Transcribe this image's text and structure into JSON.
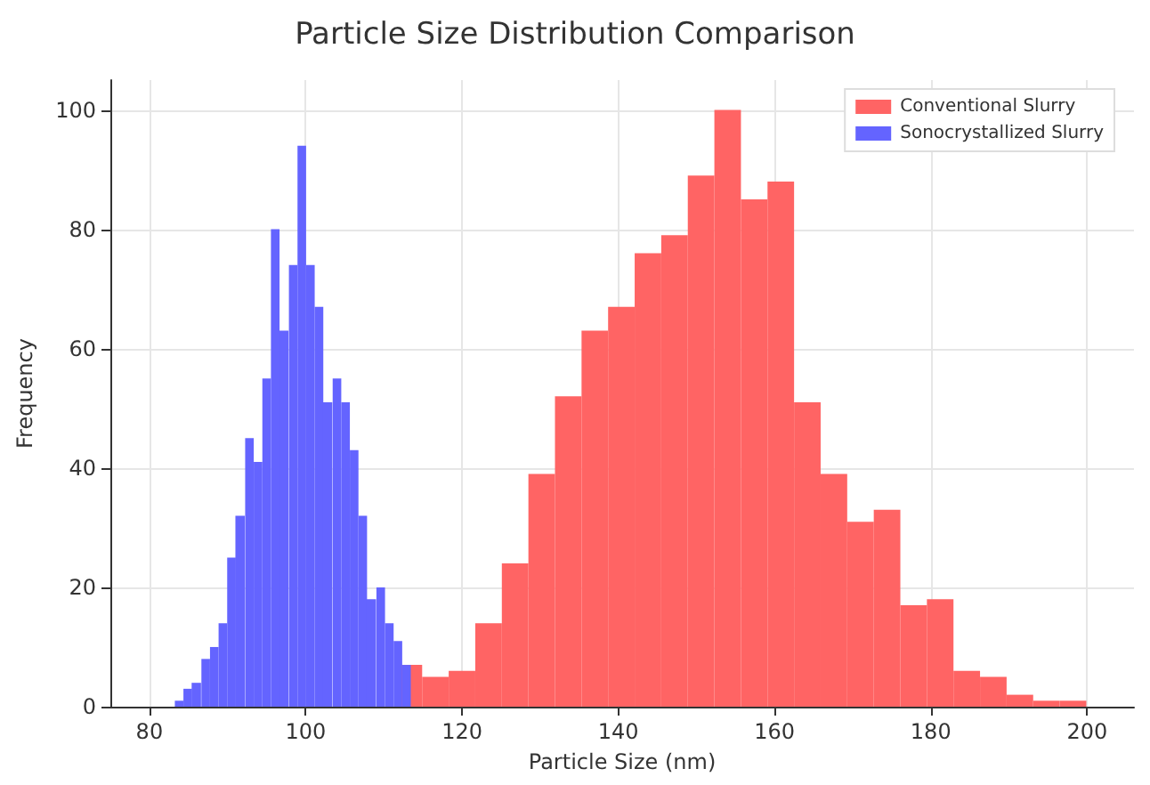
{
  "chart_data": {
    "type": "bar",
    "title": "Particle Size Distribution Comparison",
    "xlabel": "Particle Size (nm)",
    "ylabel": "Frequency",
    "xlim": [
      75,
      206
    ],
    "xticks": [
      80,
      100,
      120,
      140,
      160,
      180,
      200
    ],
    "ylim": [
      0,
      105
    ],
    "yticks": [
      0,
      20,
      40,
      60,
      80,
      100
    ],
    "grid": true,
    "legend": "top right",
    "series": [
      {
        "name": "Conventional Slurry",
        "color": "#ff6464",
        "x": [
          113.2,
          116.6,
          120.0,
          123.4,
          126.8,
          130.2,
          133.6,
          137.0,
          140.4,
          143.8,
          147.2,
          150.6,
          154.0,
          157.4,
          160.8,
          164.2,
          167.6,
          171.0,
          174.4,
          177.8,
          181.2,
          184.6,
          188.0,
          191.4,
          194.8,
          198.2
        ],
        "values": [
          7,
          5,
          6,
          14,
          24,
          39,
          52,
          63,
          67,
          76,
          79,
          89,
          100,
          85,
          88,
          51,
          39,
          31,
          33,
          17,
          18,
          6,
          5,
          2,
          1,
          1
        ]
      },
      {
        "name": "Sonocrystallized Slurry",
        "color": "#6464ff",
        "x": [
          83.8,
          84.9,
          86.0,
          87.2,
          88.3,
          89.4,
          90.5,
          91.6,
          92.8,
          93.9,
          95.0,
          96.1,
          97.2,
          98.4,
          99.5,
          100.6,
          101.7,
          102.8,
          104.0,
          105.1,
          106.2,
          107.3,
          108.4,
          109.6,
          110.7,
          111.8,
          112.9
        ],
        "values": [
          1,
          3,
          4,
          8,
          10,
          14,
          25,
          32,
          45,
          41,
          55,
          80,
          63,
          74,
          94,
          74,
          67,
          51,
          55,
          51,
          43,
          32,
          18,
          20,
          14,
          11,
          7
        ]
      }
    ]
  }
}
